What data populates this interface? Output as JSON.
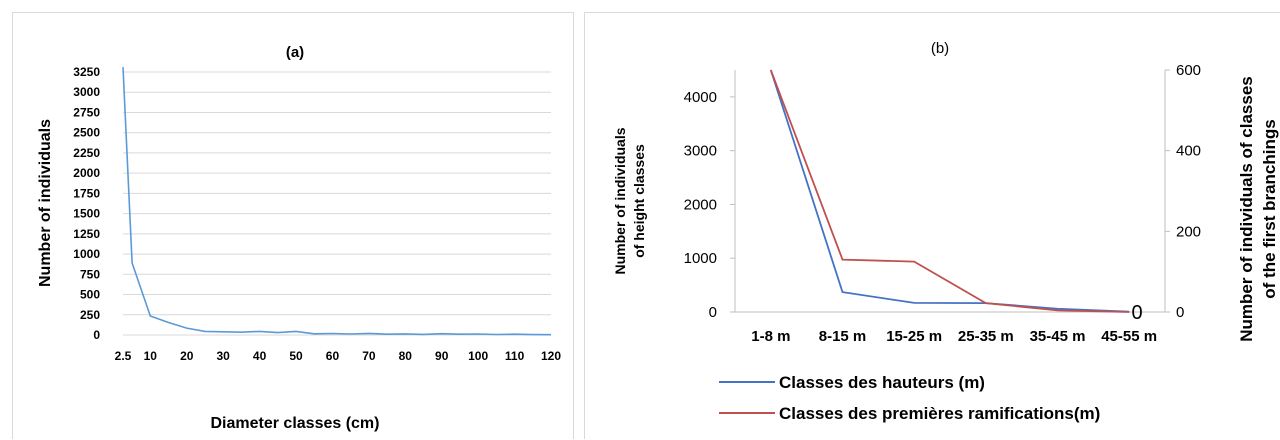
{
  "chart_data": [
    {
      "type": "line",
      "title": "(a)",
      "xlabel": "Diameter classes (cm)",
      "ylabel": "Number of individuals",
      "ylim": [
        0,
        3250
      ],
      "yticks": [
        0,
        250,
        500,
        750,
        1000,
        1250,
        1500,
        1750,
        2000,
        2250,
        2500,
        2750,
        3000,
        3250
      ],
      "xtick_labels": [
        "2.5",
        "10",
        "20",
        "30",
        "40",
        "50",
        "60",
        "70",
        "80",
        "90",
        "100",
        "110",
        "120"
      ],
      "grid": true,
      "series": [
        {
          "color": "#5b9bd5",
          "x": [
            2.5,
            5,
            10,
            15,
            20,
            25,
            30,
            35,
            40,
            45,
            50,
            55,
            60,
            65,
            70,
            75,
            80,
            85,
            90,
            95,
            100,
            105,
            110,
            115,
            120
          ],
          "values": [
            3310,
            890,
            235,
            155,
            85,
            45,
            40,
            35,
            45,
            30,
            45,
            15,
            18,
            12,
            20,
            10,
            14,
            8,
            16,
            10,
            12,
            6,
            10,
            5,
            4
          ]
        }
      ]
    },
    {
      "type": "line",
      "title": "(b)",
      "ylabel_lines": [
        "Number of individuals",
        "of height classes"
      ],
      "y2label_lines": [
        "Number of individuals of classes",
        "of the first branchings"
      ],
      "categories": [
        "1-8 m",
        "8-15 m",
        "15-25 m",
        "25-35 m",
        "35-45 m",
        "45-55 m"
      ],
      "ylim": [
        0,
        4500
      ],
      "yticks": [
        0,
        1000,
        2000,
        3000,
        4000
      ],
      "y2lim": [
        0,
        600
      ],
      "y2ticks": [
        0,
        200,
        400,
        600
      ],
      "y2_zero_marker": "0",
      "legend_position": "bottom",
      "series": [
        {
          "name": "Classes des hauteurs (m)",
          "color": "#4472c4",
          "axis": "left",
          "values": [
            4550,
            370,
            170,
            165,
            60,
            5
          ]
        },
        {
          "name": "Classes des premières ramifications(m)",
          "color": "#c0504d",
          "axis": "right",
          "values": [
            610,
            130,
            125,
            22,
            4,
            0
          ]
        }
      ]
    }
  ]
}
